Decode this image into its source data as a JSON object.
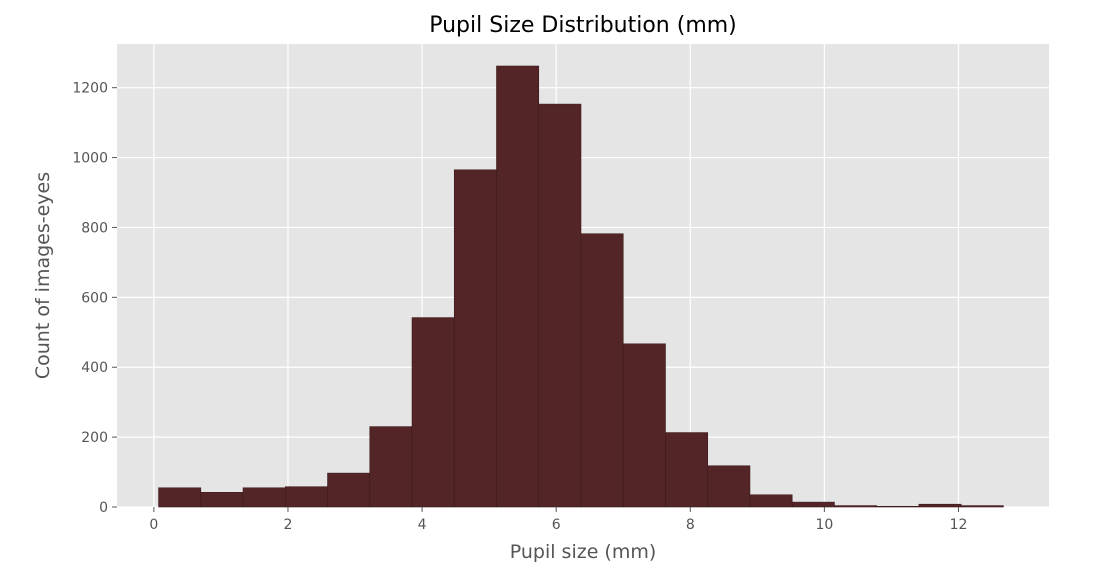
{
  "chart_data": {
    "type": "bar",
    "title": "Pupil Size Distribution (mm)",
    "xlabel": "Pupil size (mm)",
    "ylabel": "Count of images-eyes",
    "xlim": [
      -0.55,
      13.35
    ],
    "ylim": [
      0,
      1325
    ],
    "xticks": [
      0,
      2,
      4,
      6,
      8,
      10,
      12
    ],
    "yticks": [
      0,
      200,
      400,
      600,
      800,
      1000,
      1200
    ],
    "grid": true,
    "bin_edges": [
      0.07,
      0.7,
      1.33,
      1.96,
      2.59,
      3.22,
      3.85,
      4.48,
      5.11,
      5.74,
      6.37,
      7.0,
      7.63,
      8.26,
      8.89,
      9.52,
      10.15,
      10.78,
      11.41,
      12.04,
      12.67,
      13.3
    ],
    "counts": [
      55,
      42,
      55,
      58,
      97,
      230,
      542,
      965,
      1262,
      1153,
      782,
      467,
      213,
      118,
      35,
      14,
      4,
      2,
      8,
      4,
      0
    ],
    "bar_color": "#532527",
    "edge_color": "#3d1a1c",
    "background_color": "#e5e5e5",
    "grid_color": "#ffffff"
  }
}
